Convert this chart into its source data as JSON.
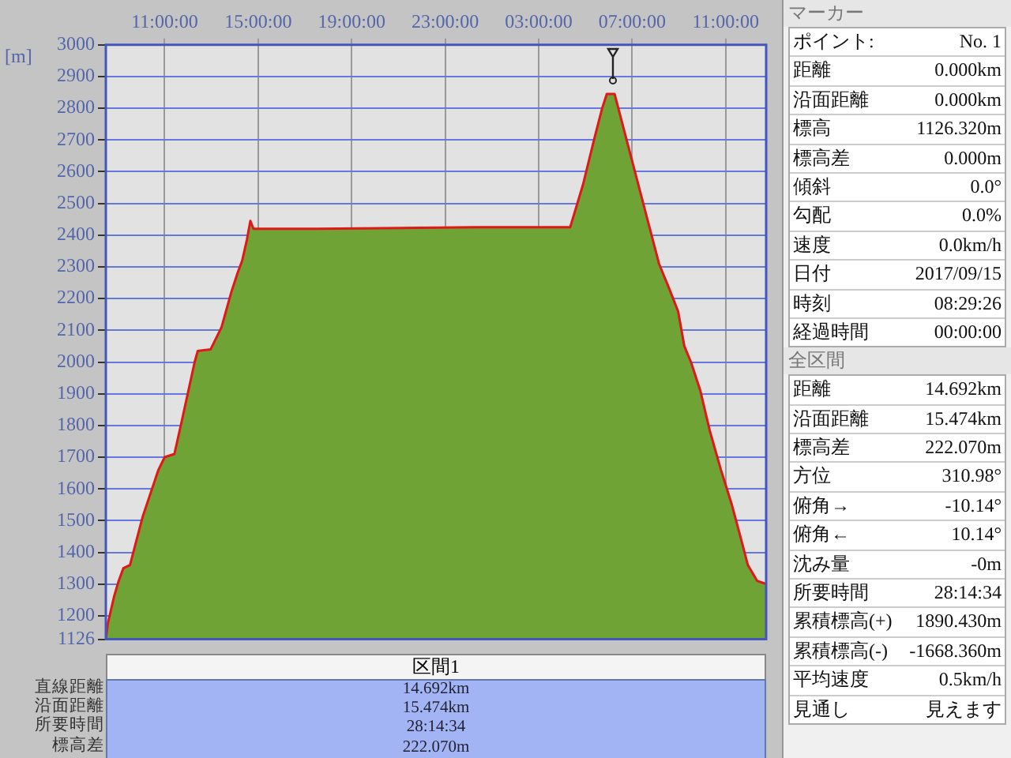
{
  "chart_data": {
    "type": "area",
    "ylabel": "[m]",
    "x": [
      "2017-09-15T08:29",
      "2017-09-15T08:34",
      "2017-09-15T08:50",
      "2017-09-15T09:02",
      "2017-09-15T09:14",
      "2017-09-15T09:31",
      "2017-09-15T10:03",
      "2017-09-15T10:44",
      "2017-09-15T11:00",
      "2017-09-15T11:25",
      "2017-09-15T11:45",
      "2017-09-15T12:17",
      "2017-09-15T12:25",
      "2017-09-15T12:58",
      "2017-09-15T13:26",
      "2017-09-15T13:51",
      "2017-09-15T14:07",
      "2017-09-15T14:19",
      "2017-09-15T14:31",
      "2017-09-15T14:40",
      "2017-09-15T14:48",
      "2017-09-15T17:30",
      "2017-09-16T00:17",
      "2017-09-16T04:21",
      "2017-09-16T04:54",
      "2017-09-16T05:22",
      "2017-09-16T05:43",
      "2017-09-16T05:55",
      "2017-09-16T06:15",
      "2017-09-16T08:09",
      "2017-09-16T08:34",
      "2017-09-16T08:58",
      "2017-09-16T09:14",
      "2017-09-16T09:31",
      "2017-09-16T09:55",
      "2017-09-16T10:19",
      "2017-09-16T10:48",
      "2017-09-16T11:16",
      "2017-09-16T11:41",
      "2017-09-16T11:57",
      "2017-09-16T12:21",
      "2017-09-16T12:44"
    ],
    "values": [
      1126,
      1175,
      1260,
      1310,
      1350,
      1360,
      1510,
      1660,
      1700,
      1710,
      1820,
      2000,
      2035,
      2040,
      2110,
      2220,
      2280,
      2320,
      2385,
      2445,
      2420,
      2420,
      2425,
      2425,
      2560,
      2700,
      2800,
      2845,
      2845,
      2310,
      2235,
      2160,
      2050,
      2000,
      1910,
      1785,
      1660,
      1550,
      1435,
      1360,
      1310,
      1300
    ],
    "color": "#6fa335",
    "xlim": [
      "2017-09-15T08:29",
      "2017-09-16T12:44"
    ],
    "xticks": [
      {
        "value": "2017-09-15T11:00",
        "label": "11:00:00"
      },
      {
        "value": "2017-09-15T15:00",
        "label": "15:00:00"
      },
      {
        "value": "2017-09-15T19:00",
        "label": "19:00:00"
      },
      {
        "value": "2017-09-15T23:00",
        "label": "23:00:00"
      },
      {
        "value": "2017-09-16T03:00",
        "label": "03:00:00"
      },
      {
        "value": "2017-09-16T07:00",
        "label": "07:00:00"
      },
      {
        "value": "2017-09-16T11:00",
        "label": "11:00:00"
      }
    ],
    "ylim": [
      1126,
      3000
    ],
    "yticks": [
      1126,
      1200,
      1300,
      1400,
      1500,
      1600,
      1700,
      1800,
      1900,
      2000,
      2100,
      2200,
      2300,
      2400,
      2500,
      2600,
      2700,
      2800,
      2900,
      3000
    ],
    "grid": true,
    "marker": "none",
    "line_style": "solid",
    "annotations": [
      "マーカー",
      "ポイント:",
      "No. 1",
      "距離",
      "0.000km",
      "沿面距離",
      "0.000km",
      "標高",
      "1126.320m",
      "標高差",
      "0.000m",
      "傾斜",
      "0.0°",
      "勾配",
      "0.0%",
      "速度",
      "0.0km/h",
      "日付",
      "2017/09/15",
      "時刻",
      "08:29:26",
      "経過時間",
      "00:00:00",
      "全区間",
      "距離",
      "14.692km",
      "沿面距離",
      "15.474km",
      "標高差",
      "222.070m",
      "方位",
      "310.98°",
      "俯角→",
      "-10.14°",
      "俯角←",
      "10.14°",
      "沈み量",
      "-0m",
      "所要時間",
      "28:14:34",
      "累積標高(+)",
      "1890.430m",
      "累積標高(-)",
      "-1668.360m",
      "平均速度",
      "0.5km/h",
      "見通し",
      "見えます",
      "区間1",
      "直線距離",
      "沿面距離",
      "所要時間",
      "標高差",
      "14.692km",
      "15.474km",
      "28:14:34",
      "222.070m"
    ]
  }
}
